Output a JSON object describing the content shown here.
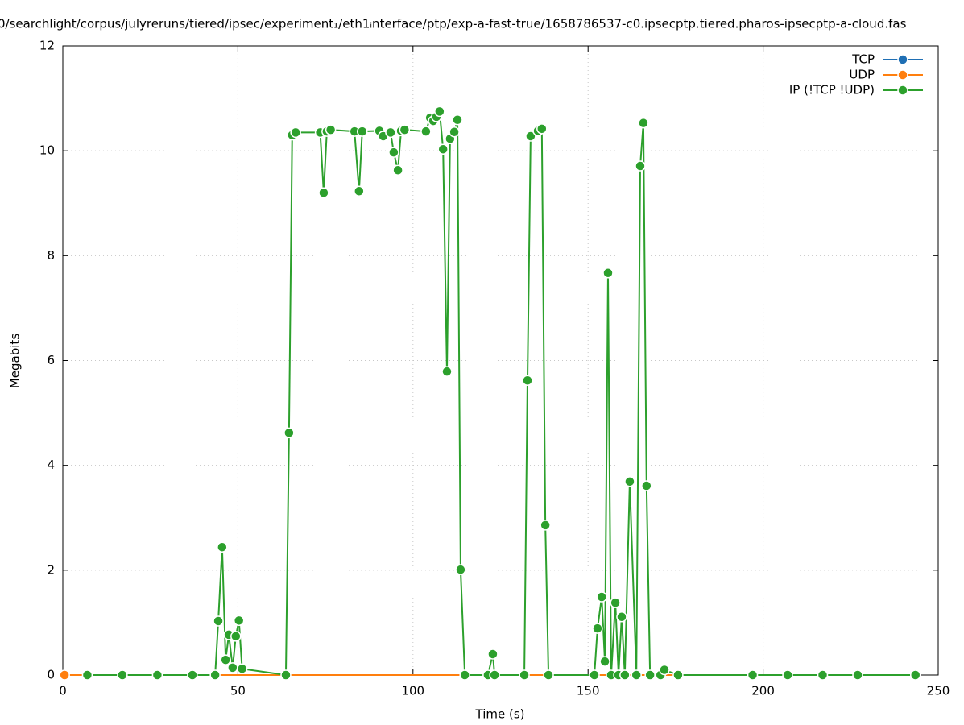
{
  "chart_data": {
    "type": "line",
    "title": "0/searchlight/corpus/julyreruns/tiered/ipsec/experiment₁/eth1ᵢnterface/ptp/exp-a-fast-true/1658786537-c0.ipsecptp.tiered.pharos-ipsecptp-a-cloud.fas",
    "xlabel": "Time (s)",
    "ylabel": "Megabits",
    "xlim": [
      0,
      250
    ],
    "xticks": [
      0,
      50,
      100,
      150,
      200,
      250
    ],
    "ylim": [
      0,
      12
    ],
    "yticks": [
      0,
      2,
      4,
      6,
      8,
      10,
      12
    ],
    "grid": true,
    "legend": "top-right",
    "series": [
      {
        "name": "TCP",
        "color": "#1f6fb4",
        "x": [],
        "values": []
      },
      {
        "name": "UDP",
        "color": "#ff7f0e",
        "x": [
          0.5,
          243.5
        ],
        "values": [
          0,
          0
        ]
      },
      {
        "name": "IP (!TCP  !UDP)",
        "color": "#2ca02c",
        "x": [
          7,
          17,
          27,
          37,
          43.5,
          44.4,
          45.5,
          46.5,
          47.4,
          48.5,
          49.4,
          50.3,
          51.2,
          63.7,
          64.6,
          65.5,
          66.5,
          73.5,
          74.5,
          75.4,
          76.5,
          83.3,
          84.6,
          85.5,
          90.4,
          91.5,
          93.6,
          94.5,
          95.7,
          96.6,
          97.6,
          103.7,
          104.9,
          105.8,
          106.7,
          107.6,
          108.6,
          109.7,
          110.6,
          111.8,
          112.7,
          113.6,
          114.8,
          121.4,
          122.8,
          123.3,
          131.8,
          132.7,
          133.6,
          135.7,
          136.8,
          137.8,
          138.7,
          151.8,
          152.7,
          153.9,
          154.8,
          155.7,
          156.6,
          157.8,
          158.7,
          159.6,
          160.5,
          161.9,
          163.8,
          164.9,
          165.8,
          166.7,
          167.7,
          170.7,
          171.8,
          175.7,
          197,
          207,
          217,
          227,
          243.5
        ],
        "values": [
          0,
          0,
          0,
          0,
          0,
          1.03,
          2.44,
          0.29,
          0.77,
          0.14,
          0.74,
          1.04,
          0.12,
          0,
          4.62,
          10.3,
          10.35,
          10.35,
          9.2,
          10.37,
          10.4,
          10.37,
          9.23,
          10.37,
          10.38,
          10.28,
          10.35,
          9.97,
          9.63,
          10.38,
          10.4,
          10.37,
          10.63,
          10.57,
          10.65,
          10.75,
          10.03,
          5.79,
          10.23,
          10.36,
          10.59,
          2.01,
          0,
          0,
          0.4,
          0,
          0,
          5.62,
          10.28,
          10.38,
          10.42,
          2.86,
          0,
          0,
          0.89,
          1.49,
          0.26,
          7.67,
          0,
          1.38,
          0,
          1.11,
          0,
          3.69,
          0,
          9.71,
          10.53,
          3.61,
          0,
          0,
          0.1,
          0,
          0,
          0,
          0,
          0,
          0
        ]
      }
    ]
  }
}
